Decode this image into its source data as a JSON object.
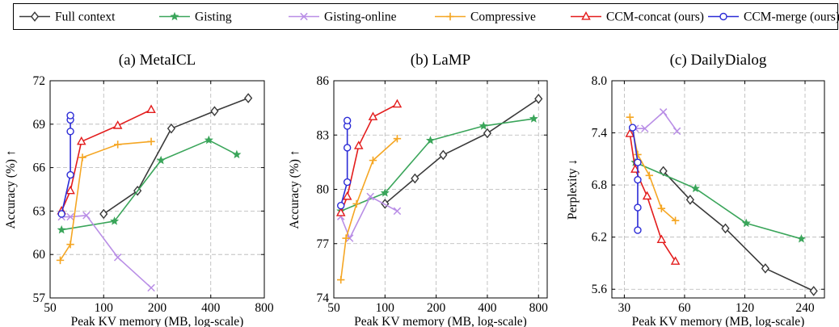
{
  "legend": {
    "items": [
      {
        "label": "Full context",
        "color": "#3a3a3a",
        "marker": "diamond"
      },
      {
        "label": "Gisting",
        "color": "#3aa55a",
        "marker": "star"
      },
      {
        "label": "Gisting-online",
        "color": "#b98ee6",
        "marker": "x"
      },
      {
        "label": "Compressive",
        "color": "#f5a623",
        "marker": "plus"
      },
      {
        "label": "CCM-concat (ours)",
        "color": "#e31c1c",
        "marker": "triangle"
      },
      {
        "label": "CCM-merge (ours)",
        "color": "#2b2bd6",
        "marker": "circle"
      }
    ]
  },
  "chart_data": [
    {
      "type": "line",
      "title": "(a) MetaICL",
      "xlabel": "Peak KV memory (MB, log-scale)",
      "ylabel": "Accuracy (%) ↑",
      "xscale": "log",
      "xlim": [
        50,
        800
      ],
      "ylim": [
        57,
        72
      ],
      "xticks": [
        50,
        100,
        200,
        400,
        800
      ],
      "yticks": [
        57,
        60,
        63,
        66,
        69,
        72
      ],
      "grid": true,
      "series": [
        {
          "name": "Full context",
          "x": [
            100,
            155,
            240,
            420,
            650
          ],
          "y": [
            62.8,
            64.4,
            68.7,
            69.9,
            70.8
          ]
        },
        {
          "name": "Gisting",
          "x": [
            58,
            115,
            210,
            390,
            560
          ],
          "y": [
            61.7,
            62.3,
            66.5,
            67.9,
            66.9
          ]
        },
        {
          "name": "Gisting-online",
          "x": [
            58,
            65,
            80,
            120,
            185
          ],
          "y": [
            62.6,
            62.6,
            62.7,
            59.8,
            57.7
          ]
        },
        {
          "name": "Compressive",
          "x": [
            57,
            65,
            76,
            120,
            185
          ],
          "y": [
            59.6,
            60.7,
            66.7,
            67.6,
            67.8
          ]
        },
        {
          "name": "CCM-concat (ours)",
          "x": [
            58,
            65,
            75,
            120,
            185
          ],
          "y": [
            63.0,
            64.4,
            67.8,
            68.9,
            70.0
          ]
        },
        {
          "name": "CCM-merge (ours)",
          "x": [
            58,
            65,
            65,
            65,
            65
          ],
          "y": [
            62.8,
            65.5,
            68.5,
            69.3,
            69.6
          ]
        }
      ]
    },
    {
      "type": "line",
      "title": "(b) LaMP",
      "xlabel": "Peak KV memory (MB, log-scale)",
      "ylabel": "Accuracy (%) ↑",
      "xscale": "log",
      "xlim": [
        50,
        900
      ],
      "ylim": [
        74,
        86
      ],
      "xticks": [
        50,
        100,
        200,
        400,
        800
      ],
      "yticks": [
        74,
        77,
        80,
        83,
        86
      ],
      "grid": true,
      "series": [
        {
          "name": "Full context",
          "x": [
            100,
            150,
            220,
            400,
            800
          ],
          "y": [
            79.2,
            80.6,
            81.9,
            83.1,
            85.0
          ]
        },
        {
          "name": "Gisting",
          "x": [
            55,
            100,
            185,
            380,
            750
          ],
          "y": [
            78.8,
            79.8,
            82.7,
            83.5,
            83.9
          ]
        },
        {
          "name": "Gisting-online",
          "x": [
            55,
            62,
            82,
            118
          ],
          "y": [
            78.5,
            77.3,
            79.6,
            78.8
          ]
        },
        {
          "name": "Compressive",
          "x": [
            55,
            59,
            68,
            85,
            118
          ],
          "y": [
            75.0,
            77.3,
            79.2,
            81.6,
            82.8
          ]
        },
        {
          "name": "CCM-concat (ours)",
          "x": [
            55,
            60,
            70,
            85,
            118
          ],
          "y": [
            78.7,
            79.6,
            82.4,
            84.0,
            84.7
          ]
        },
        {
          "name": "CCM-merge (ours)",
          "x": [
            55,
            60,
            60,
            60,
            60
          ],
          "y": [
            79.1,
            80.4,
            82.3,
            83.5,
            83.8
          ]
        }
      ]
    },
    {
      "type": "line",
      "title": "(c) DailyDialog",
      "xlabel": "Peak KV memory (MB, log-scale)",
      "ylabel": "Perplexity ↓",
      "xscale": "log",
      "xlim": [
        26,
        300
      ],
      "ylim": [
        5.5,
        8.0
      ],
      "xticks": [
        30,
        60,
        120,
        240
      ],
      "yticks": [
        5.6,
        6.2,
        6.8,
        7.4,
        8.0
      ],
      "grid": true,
      "series": [
        {
          "name": "Full context",
          "x": [
            47,
            64,
            96,
            152,
            265
          ],
          "y": [
            6.96,
            6.63,
            6.3,
            5.84,
            5.58
          ]
        },
        {
          "name": "Gisting",
          "x": [
            34,
            68,
            122,
            230
          ],
          "y": [
            7.06,
            6.76,
            6.36,
            6.18
          ]
        },
        {
          "name": "Gisting-online",
          "x": [
            34,
            38,
            47,
            55
          ],
          "y": [
            7.45,
            7.45,
            7.64,
            7.42
          ]
        },
        {
          "name": "Compressive",
          "x": [
            32,
            35,
            40,
            46,
            54
          ],
          "y": [
            7.58,
            7.15,
            6.91,
            6.53,
            6.39
          ]
        },
        {
          "name": "CCM-concat (ours)",
          "x": [
            32,
            34,
            39,
            46,
            54
          ],
          "y": [
            7.39,
            6.98,
            6.67,
            6.17,
            5.92
          ]
        },
        {
          "name": "CCM-merge (ours)",
          "x": [
            33,
            35,
            35,
            35,
            35
          ],
          "y": [
            7.46,
            7.06,
            6.86,
            6.54,
            6.28
          ]
        }
      ]
    }
  ]
}
